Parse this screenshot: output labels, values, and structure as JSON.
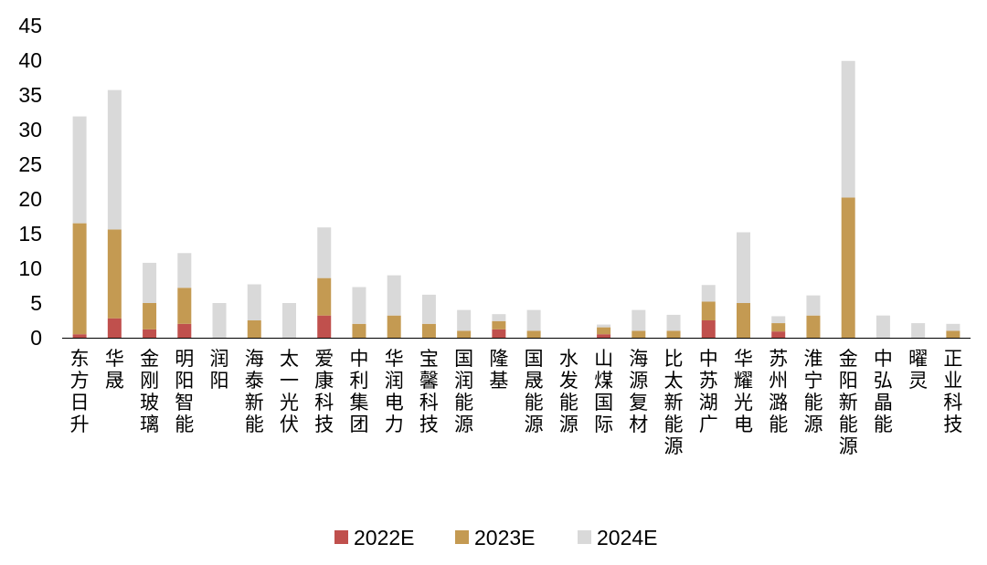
{
  "chart_data": {
    "type": "bar",
    "stacked": true,
    "title": "",
    "xlabel": "",
    "ylabel": "",
    "ylim": [
      0,
      45
    ],
    "yticks": [
      0,
      5,
      10,
      15,
      20,
      25,
      30,
      35,
      40,
      45
    ],
    "grid": false,
    "legend_position": "bottom",
    "categories": [
      "东方日升",
      "华晟",
      "金刚玻璃",
      "明阳智能",
      "润阳",
      "海泰新能",
      "太一光伏",
      "爱康科技",
      "中利集团",
      "华润电力",
      "宝馨科技",
      "国润能源",
      "隆基",
      "国晟能源",
      "水发能源",
      "山煤国际",
      "海源复材",
      "比太新能源",
      "中苏湖广",
      "华耀光电",
      "苏州潞能",
      "淮宁能源",
      "金阳新能源",
      "中弘晶能",
      "曜灵",
      "正业科技"
    ],
    "series": [
      {
        "name": "2022E",
        "color": "#c0504d",
        "values": [
          0.5,
          2.8,
          1.2,
          2.0,
          0,
          0,
          0,
          3.2,
          0,
          0,
          0,
          0,
          1.2,
          0,
          0,
          0.5,
          0,
          0,
          2.5,
          0,
          0.9,
          0,
          0,
          0,
          0,
          0
        ]
      },
      {
        "name": "2023E",
        "color": "#c49a52",
        "values": [
          16.0,
          12.8,
          3.8,
          5.2,
          0,
          2.5,
          0,
          5.4,
          2.0,
          3.2,
          2.0,
          1.0,
          1.2,
          1.0,
          0,
          1.0,
          1.0,
          1.0,
          2.7,
          5.0,
          1.2,
          3.2,
          20.2,
          0,
          0,
          1.0
        ]
      },
      {
        "name": "2024E",
        "color": "#d9d9d9",
        "values": [
          15.4,
          20.1,
          5.8,
          5.0,
          5.0,
          5.2,
          5.0,
          7.3,
          5.3,
          5.8,
          4.2,
          3.0,
          1.0,
          3.0,
          0,
          0.4,
          3.0,
          2.3,
          2.4,
          10.2,
          1.0,
          2.9,
          19.7,
          3.2,
          2.1,
          1.0
        ]
      }
    ]
  }
}
